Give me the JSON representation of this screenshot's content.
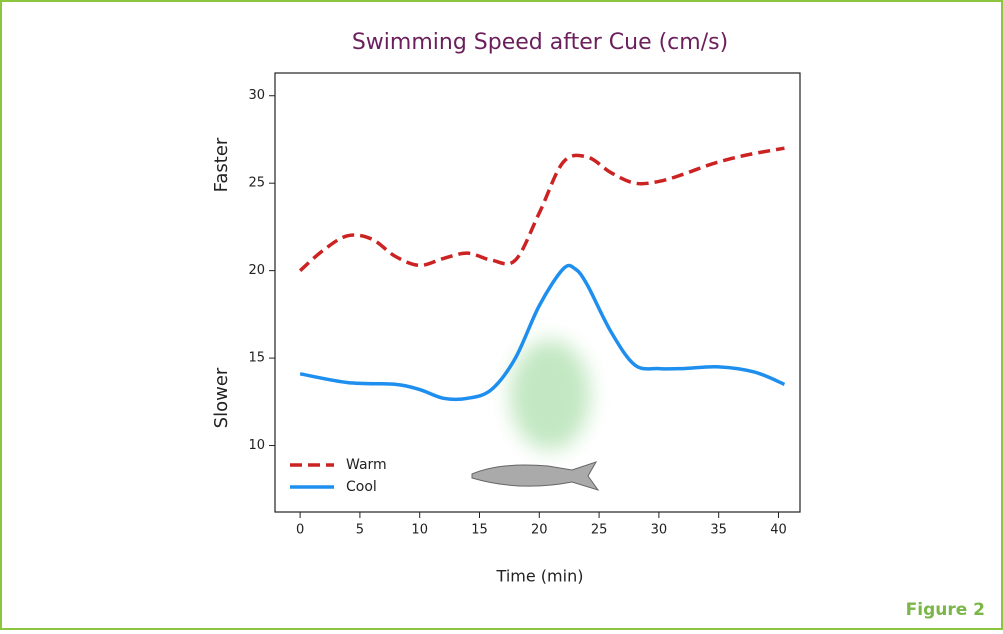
{
  "chart_data": {
    "type": "line",
    "title": "Swimming Speed after Cue (cm/s)",
    "x_label": "Time (min)",
    "y_annotations": [
      "Faster",
      "Slower"
    ],
    "figure_label": "Figure 2",
    "xlim": [
      -2.1,
      41.8
    ],
    "ylim": [
      6.2,
      31.3
    ],
    "xticks": [
      0,
      5,
      10,
      15,
      20,
      25,
      30,
      35,
      40
    ],
    "yticks": [
      10,
      15,
      20,
      25,
      30
    ],
    "grid": false,
    "legend": "lower left",
    "series": [
      {
        "name": "Warm",
        "color": "#cc2222",
        "dash": true,
        "x": [
          0,
          2,
          4,
          6,
          8,
          10,
          12,
          14,
          16,
          18,
          20,
          22,
          24,
          26,
          28,
          30,
          32,
          34,
          36,
          38,
          40.5
        ],
        "values": [
          20,
          21.2,
          22,
          21.8,
          20.8,
          20.3,
          20.7,
          21,
          20.6,
          20.6,
          23.3,
          26.2,
          26.5,
          25.6,
          25,
          25.1,
          25.5,
          26,
          26.4,
          26.7,
          27
        ]
      },
      {
        "name": "Cool",
        "color": "#1e8fee",
        "dash": false,
        "x": [
          0,
          4,
          8,
          10,
          12,
          14,
          16,
          18,
          20,
          22,
          23,
          24,
          26,
          28,
          30,
          32,
          35,
          38,
          40.5
        ],
        "values": [
          14.1,
          13.6,
          13.5,
          13.2,
          12.7,
          12.7,
          13.2,
          15,
          18,
          20.1,
          20.1,
          19.2,
          16.5,
          14.6,
          14.4,
          14.4,
          14.5,
          14.2,
          13.5
        ]
      }
    ]
  }
}
